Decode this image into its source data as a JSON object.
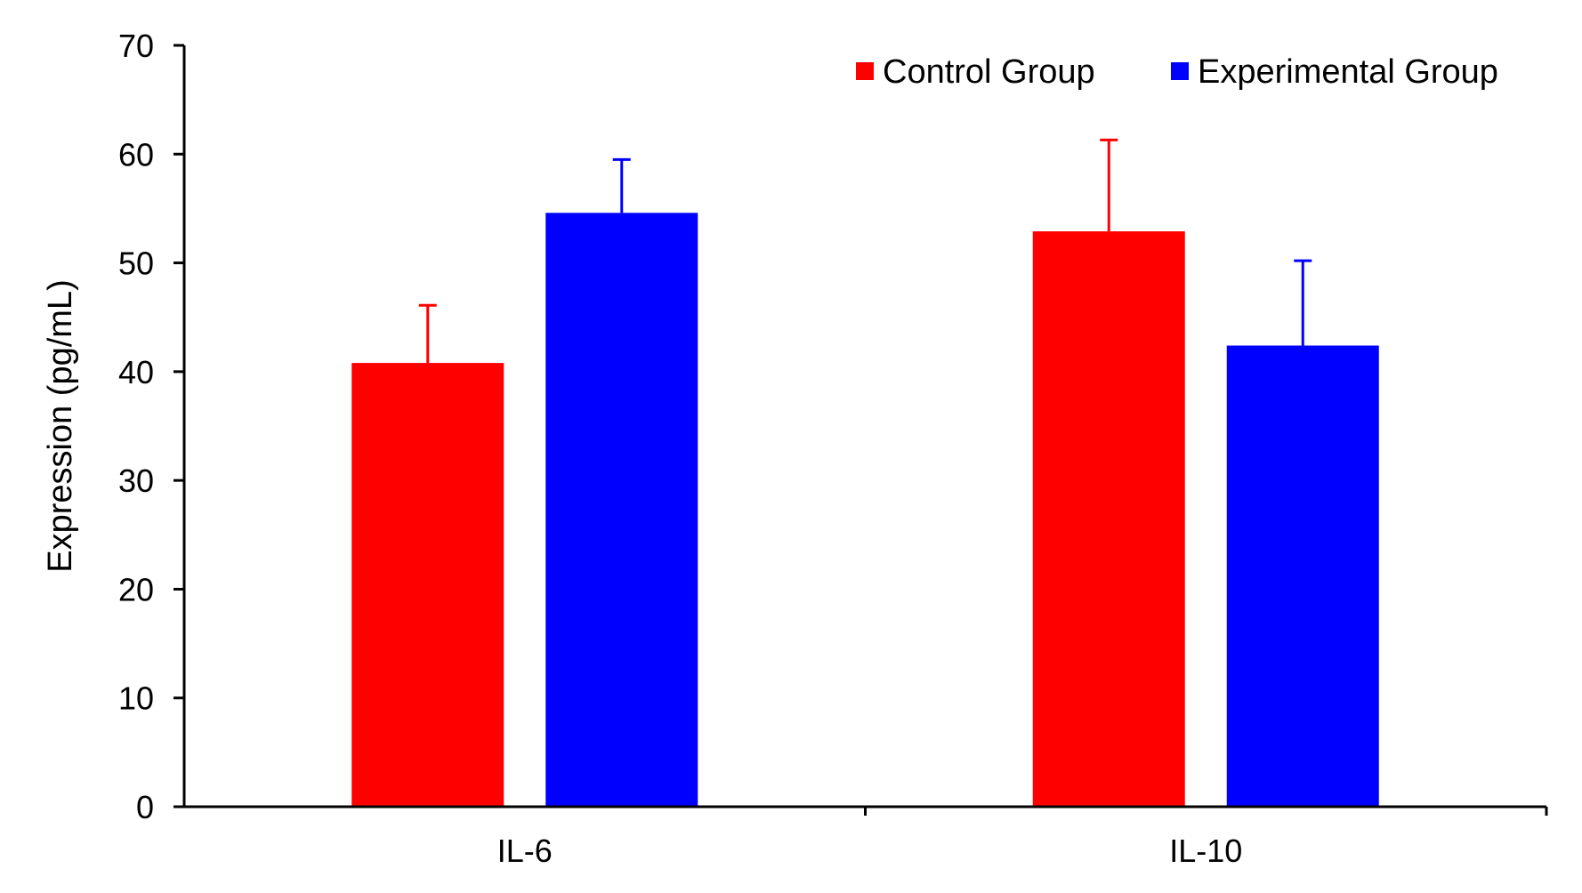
{
  "chart_data": {
    "type": "bar",
    "title": "",
    "xlabel": "",
    "ylabel": "Expression (pg/mL)",
    "ylim": [
      0,
      70
    ],
    "yticks": [
      0,
      10,
      20,
      30,
      40,
      50,
      60,
      70
    ],
    "ytick_labels": [
      "0",
      "10",
      "20",
      "30",
      "40",
      "50",
      "60",
      "70"
    ],
    "categories": [
      "IL-6",
      "IL-10"
    ],
    "series": [
      {
        "name": "Control Group",
        "color": "#ff0000",
        "values": [
          40.8,
          52.9
        ],
        "errors": [
          5.3,
          8.4
        ]
      },
      {
        "name": "Experimental Group",
        "color": "#0000ff",
        "values": [
          54.6,
          42.4
        ],
        "errors": [
          4.9,
          7.8
        ]
      }
    ],
    "legend_position": "top-right",
    "grid": false,
    "error_bars": "upper"
  }
}
